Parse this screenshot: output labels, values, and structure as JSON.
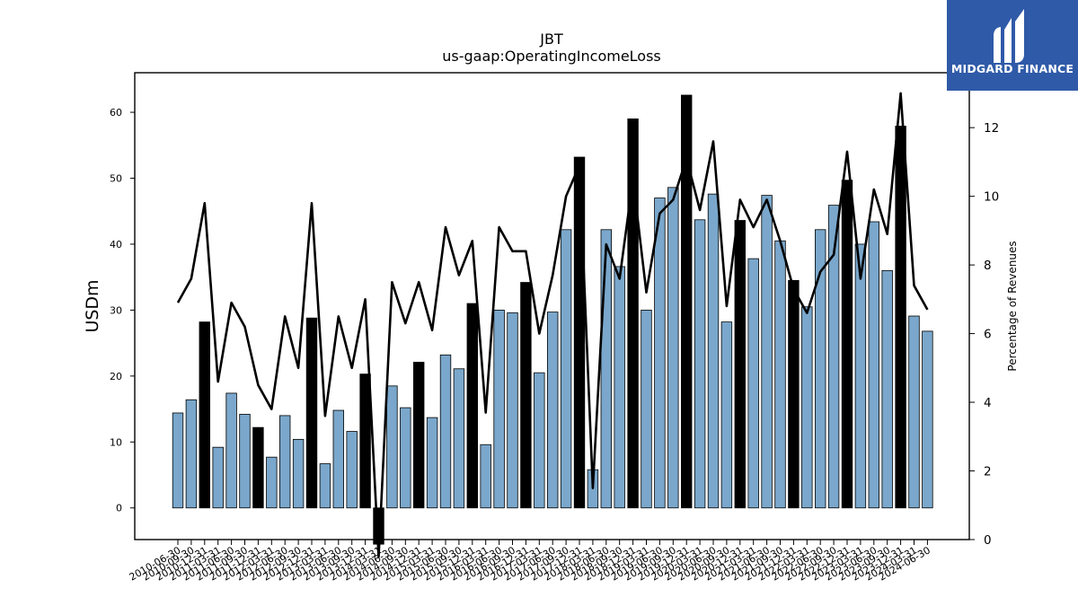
{
  "chart_data": {
    "type": "bar",
    "title": "JBT",
    "subtitle": "us-gaap:OperatingIncomeLoss",
    "ylabel": "USDm",
    "y2label": "Percentage of Revenues",
    "ylim": [
      -4.8,
      66
    ],
    "y2lim": [
      0,
      13.6
    ],
    "yticks": [
      0,
      10,
      20,
      30,
      40,
      50,
      60
    ],
    "y2ticks": [
      0,
      2,
      4,
      6,
      8,
      10,
      12
    ],
    "categories": [
      "2010-06-30",
      "2010-09-30",
      "2010-12-31",
      "2011-03-31",
      "2011-06-30",
      "2011-09-30",
      "2011-12-31",
      "2012-03-31",
      "2012-06-30",
      "2012-09-30",
      "2012-12-31",
      "2013-03-31",
      "2013-06-30",
      "2013-09-30",
      "2013-12-31",
      "2014-03-31",
      "2014-06-30",
      "2014-09-30",
      "2014-12-31",
      "2015-03-31",
      "2015-06-30",
      "2015-09-30",
      "2015-12-31",
      "2016-03-31",
      "2016-06-30",
      "2016-09-30",
      "2016-12-31",
      "2017-03-31",
      "2017-06-30",
      "2017-09-30",
      "2017-12-31",
      "2018-03-31",
      "2018-06-30",
      "2018-09-30",
      "2018-12-31",
      "2019-03-31",
      "2019-06-30",
      "2019-09-30",
      "2019-12-31",
      "2020-03-31",
      "2020-06-30",
      "2020-09-30",
      "2020-12-31",
      "2021-03-31",
      "2021-06-30",
      "2021-09-30",
      "2021-12-31",
      "2022-03-31",
      "2022-06-30",
      "2022-09-30",
      "2022-12-31",
      "2023-03-31",
      "2023-06-30",
      "2023-09-30",
      "2023-12-31",
      "2024-03-31",
      "2024-06-30"
    ],
    "xtick_labels": [
      "2010-06-30",
      "2010-09-30",
      "2010-12-31",
      "2011-03-31",
      "2011-06-30",
      "2011-09-30",
      "2011-12-31",
      "2012-03-31",
      "2012-06-30",
      "2012-09-30",
      "2012-12-31",
      "2013-03-31",
      "2013-06-30",
      "2013-09-30",
      "2013-12-31",
      "2014-03-31",
      "2014-06-30",
      "2014-09-30",
      "2014-12-31",
      "2015-03-31",
      "2015-06-30",
      "2015-09-30",
      "2015-12-31",
      "2016-03-31",
      "2016-06-30",
      "2016-09-30",
      "2016-12-31",
      "2017-03-31",
      "2017-06-30",
      "2017-09-30",
      "2017-12-31",
      "2018-03-31",
      "2018-06-30",
      "2018-09-30",
      "2018-12-31",
      "2019-03-31",
      "2019-06-30",
      "2019-09-30",
      "2019-12-31",
      "2020-03-31",
      "2020-06-30",
      "2020-09-30",
      "2020-12-31",
      "2021-03-31",
      "2021-06-30",
      "2021-09-30",
      "2021-12-31",
      "2022-03-31",
      "2022-06-30",
      "2022-09-30",
      "2022-12-31",
      "2023-03-31",
      "2023-06-30",
      "2023-09-30",
      "2023-12-31",
      "2024-03-31",
      "2024-06-30"
    ],
    "series": [
      {
        "type": "bar",
        "axis": "left",
        "values": [
          14.4,
          16.4,
          28.2,
          9.2,
          17.4,
          14.2,
          12.2,
          7.7,
          14.0,
          10.4,
          28.8,
          6.7,
          14.8,
          11.6,
          20.3,
          -5.5,
          18.5,
          15.2,
          22.1,
          13.7,
          23.2,
          21.1,
          31.0,
          9.6,
          30.0,
          29.6,
          34.2,
          20.5,
          29.7,
          42.2,
          53.2,
          5.8,
          42.2,
          36.6,
          59.0,
          30.0,
          47.0,
          48.6,
          62.6,
          43.7,
          47.6,
          28.2,
          43.6,
          37.8,
          47.4,
          40.5,
          34.5,
          30.5,
          42.2,
          45.9,
          49.7,
          40.0,
          43.4,
          36.0,
          57.9,
          29.1,
          26.8
        ],
        "highlight": [
          false,
          false,
          true,
          false,
          false,
          false,
          true,
          false,
          false,
          false,
          true,
          false,
          false,
          false,
          true,
          true,
          false,
          false,
          true,
          false,
          false,
          false,
          true,
          false,
          false,
          false,
          true,
          false,
          false,
          false,
          true,
          false,
          false,
          false,
          true,
          false,
          false,
          false,
          true,
          false,
          false,
          false,
          true,
          false,
          false,
          false,
          true,
          false,
          false,
          false,
          true,
          false,
          false,
          false,
          true,
          false,
          false
        ]
      },
      {
        "type": "line",
        "axis": "right",
        "values": [
          6.9,
          7.6,
          9.8,
          4.6,
          6.9,
          6.2,
          4.5,
          3.8,
          6.5,
          5.0,
          9.8,
          3.6,
          6.5,
          5.0,
          7.0,
          -0.5,
          7.5,
          6.3,
          7.5,
          6.1,
          9.1,
          7.7,
          8.7,
          3.7,
          9.1,
          8.4,
          8.4,
          6.0,
          7.7,
          10.0,
          10.9,
          1.5,
          8.6,
          7.6,
          10.5,
          7.2,
          9.5,
          9.9,
          11.1,
          9.6,
          11.6,
          6.8,
          9.9,
          9.1,
          9.9,
          8.7,
          7.3,
          6.6,
          7.8,
          8.3,
          11.3,
          7.6,
          10.2,
          8.9,
          13.0,
          7.4,
          6.7
        ]
      }
    ],
    "colors": {
      "bar_normal": "#7aa7cb",
      "bar_highlight": "#000000",
      "line": "#000000"
    }
  },
  "logo": {
    "text": "MIDGARD FINANCE"
  }
}
